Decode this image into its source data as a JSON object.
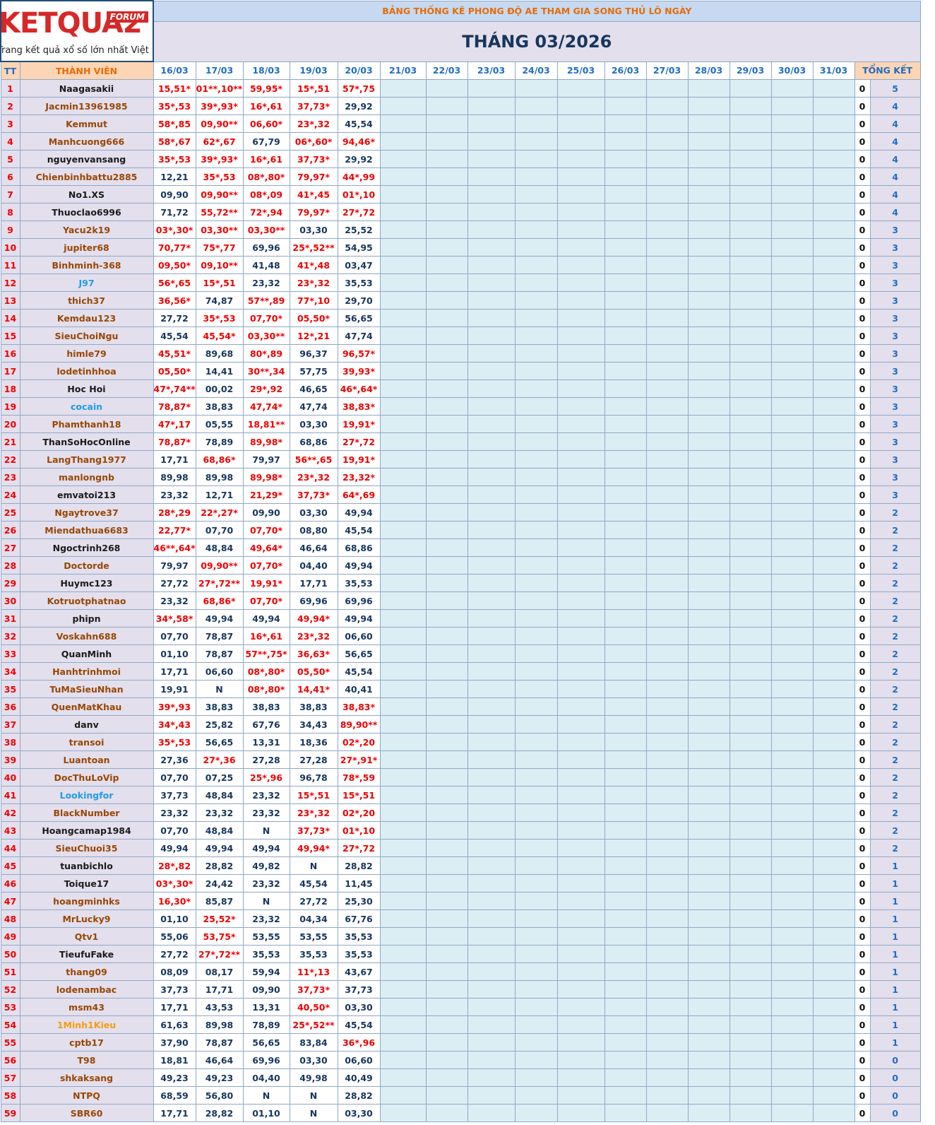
{
  "logo": {
    "name": "KETQUA2",
    "badge": "FORUM",
    "tagline": "Trang kết quả xổ số lớn nhất Việt Nam"
  },
  "header": {
    "title": "BẢNG THỐNG KÊ PHONG ĐỘ AE THAM GIA SONG THỦ LÔ NGÀY",
    "month": "THÁNG 03/2026"
  },
  "table": {
    "columns": [
      "TT",
      "THÀNH VIÊN",
      "16/03",
      "17/03",
      "18/03",
      "19/03",
      "20/03",
      "21/03",
      "22/03",
      "23/03",
      "24/03",
      "25/03",
      "26/03",
      "27/03",
      "28/03",
      "29/03",
      "30/03",
      "31/03",
      "TỔNG KẾT"
    ],
    "rows": [
      [
        1,
        "Naagasakii",
        "15,51*",
        "01**,10**",
        "59,95*",
        "15*,51",
        "57*,75",
        0,
        5
      ],
      [
        2,
        "Jacmin13961985",
        "35*,53",
        "39*,93*",
        "16*,61",
        "37,73*",
        "29,92",
        0,
        4
      ],
      [
        3,
        "Kemmut",
        "58*,85",
        "09,90**",
        "06,60*",
        "23*,32",
        "45,54",
        0,
        4
      ],
      [
        4,
        "Manhcuong666",
        "58*,67",
        "62*,67",
        "67,79",
        "06*,60*",
        "94,46*",
        0,
        4
      ],
      [
        5,
        "nguyenvansang",
        "35*,53",
        "39*,93*",
        "16*,61",
        "37,73*",
        "29,92",
        0,
        4
      ],
      [
        6,
        "Chienbinhbattu2885",
        "12,21",
        "35*,53",
        "08*,80*",
        "79,97*",
        "44*,99",
        0,
        4
      ],
      [
        7,
        "No1.XS",
        "09,90",
        "09,90**",
        "08*,09",
        "41*,45",
        "01*,10",
        0,
        4
      ],
      [
        8,
        "Thuoclao6996",
        "71,72",
        "55,72**",
        "72*,94",
        "79,97*",
        "27*,72",
        0,
        4
      ],
      [
        9,
        "Yacu2k19",
        "03*,30*",
        "03,30**",
        "03,30**",
        "03,30",
        "25,52",
        0,
        3
      ],
      [
        10,
        "jupiter68",
        "70,77*",
        "75*,77",
        "69,96",
        "25*,52**",
        "54,95",
        0,
        3
      ],
      [
        11,
        "Binhminh-368",
        "09,50*",
        "09,10**",
        "41,48",
        "41*,48",
        "03,47",
        0,
        3
      ],
      [
        12,
        "J97",
        "56*,65",
        "15*,51",
        "23,32",
        "23*,32",
        "35,53",
        0,
        3
      ],
      [
        13,
        "thich37",
        "36,56*",
        "74,87",
        "57**,89",
        "77*,10",
        "29,70",
        0,
        3
      ],
      [
        14,
        "Kemdau123",
        "27,72",
        "35*,53",
        "07,70*",
        "05,50*",
        "56,65",
        0,
        3
      ],
      [
        15,
        "SieuChoiNgu",
        "45,54",
        "45,54*",
        "03,30**",
        "12*,21",
        "47,74",
        0,
        3
      ],
      [
        16,
        "himle79",
        "45,51*",
        "89,68",
        "80*,89",
        "96,37",
        "96,57*",
        0,
        3
      ],
      [
        17,
        "lodetinhhoa",
        "05,50*",
        "14,41",
        "30**,34",
        "57,75",
        "39,93*",
        0,
        3
      ],
      [
        18,
        "Hoc Hoi",
        "47*,74**",
        "00,02",
        "29*,92",
        "46,65",
        "46*,64*",
        0,
        3
      ],
      [
        19,
        "cocain",
        "78,87*",
        "38,83",
        "47,74*",
        "47,74",
        "38,83*",
        0,
        3
      ],
      [
        20,
        "Phamthanh18",
        "47*,17",
        "05,55",
        "18,81**",
        "03,30",
        "19,91*",
        0,
        3
      ],
      [
        21,
        "ThanSoHocOnline",
        "78,87*",
        "78,89",
        "89,98*",
        "68,86",
        "27*,72",
        0,
        3
      ],
      [
        22,
        "LangThang1977",
        "17,71",
        "68,86*",
        "79,97",
        "56**,65",
        "19,91*",
        0,
        3
      ],
      [
        23,
        "manlongnb",
        "89,98",
        "89,98",
        "89,98*",
        "23*,32",
        "23,32*",
        0,
        3
      ],
      [
        24,
        "emvatoi213",
        "23,32",
        "12,71",
        "21,29*",
        "37,73*",
        "64*,69",
        0,
        3
      ],
      [
        25,
        "Ngaytrove37",
        "28*,29",
        "22*,27*",
        "09,90",
        "03,30",
        "49,94",
        0,
        2
      ],
      [
        26,
        "Miendathua6683",
        "22,77*",
        "07,70",
        "07,70*",
        "08,80",
        "45,54",
        0,
        2
      ],
      [
        27,
        "Ngoctrinh268",
        "46**,64*",
        "48,84",
        "49,64*",
        "46,64",
        "68,86",
        0,
        2
      ],
      [
        28,
        "Doctorde",
        "79,97",
        "09,90**",
        "07,70*",
        "04,40",
        "49,94",
        0,
        2
      ],
      [
        29,
        "Huymc123",
        "27,72",
        "27*,72**",
        "19,91*",
        "17,71",
        "35,53",
        0,
        2
      ],
      [
        30,
        "Kotruotphatnao",
        "23,32",
        "68,86*",
        "07,70*",
        "69,96",
        "69,96",
        0,
        2
      ],
      [
        31,
        "phipn",
        "34*,58*",
        "49,94",
        "49,94",
        "49,94*",
        "49,94",
        0,
        2
      ],
      [
        32,
        "Voskahn688",
        "07,70",
        "78,87",
        "16*,61",
        "23*,32",
        "06,60",
        0,
        2
      ],
      [
        33,
        "QuanMinh",
        "01,10",
        "78,87",
        "57**,75*",
        "36,63*",
        "56,65",
        0,
        2
      ],
      [
        34,
        "Hanhtrinhmoi",
        "17,71",
        "06,60",
        "08*,80*",
        "05,50*",
        "45,54",
        0,
        2
      ],
      [
        35,
        "TuMaSieuNhan",
        "19,91",
        "N",
        "08*,80*",
        "14,41*",
        "40,41",
        0,
        2
      ],
      [
        36,
        "QuenMatKhau",
        "39*,93",
        "38,83",
        "38,83",
        "38,83",
        "38,83*",
        0,
        2
      ],
      [
        37,
        "danv",
        "34*,43",
        "25,82",
        "67,76",
        "34,43",
        "89,90**",
        0,
        2
      ],
      [
        38,
        "transoi",
        "35*,53",
        "56,65",
        "13,31",
        "18,36",
        "02*,20",
        0,
        2
      ],
      [
        39,
        "Luantoan",
        "27,36",
        "27*,36",
        "27,28",
        "27,28",
        "27*,91*",
        0,
        2
      ],
      [
        40,
        "DocThuLoVip",
        "07,70",
        "07,25",
        "25*,96",
        "96,78",
        "78*,59",
        0,
        2
      ],
      [
        41,
        "Lookingfor",
        "37,73",
        "48,84",
        "23,32",
        "15*,51",
        "15*,51",
        0,
        2
      ],
      [
        42,
        "BlackNumber",
        "23,32",
        "23,32",
        "23,32",
        "23*,32",
        "02*,20",
        0,
        2
      ],
      [
        43,
        "Hoangcamap1984",
        "07,70",
        "48,84",
        "N",
        "37,73*",
        "01*,10",
        0,
        2
      ],
      [
        44,
        "SieuChuoi35",
        "49,94",
        "49,94",
        "49,94",
        "49,94*",
        "27*,72",
        0,
        2
      ],
      [
        45,
        "tuanbichlo",
        "28*,82",
        "28,82",
        "49,82",
        "N",
        "28,82",
        0,
        1
      ],
      [
        46,
        "Toique17",
        "03*,30*",
        "24,42",
        "23,32",
        "45,54",
        "11,45",
        0,
        1
      ],
      [
        47,
        "hoangminhks",
        "16,30*",
        "85,87",
        "N",
        "27,72",
        "25,30",
        0,
        1
      ],
      [
        48,
        "MrLucky9",
        "01,10",
        "25,52*",
        "23,32",
        "04,34",
        "67,76",
        0,
        1
      ],
      [
        49,
        "Qtv1",
        "55,06",
        "53,75*",
        "53,55",
        "53,55",
        "35,53",
        0,
        1
      ],
      [
        50,
        "TieufuFake",
        "27,72",
        "27*,72**",
        "35,53",
        "35,53",
        "35,53",
        0,
        1
      ],
      [
        51,
        "thang09",
        "08,09",
        "08,17",
        "59,94",
        "11*,13",
        "43,67",
        0,
        1
      ],
      [
        52,
        "lodenambac",
        "37,73",
        "17,71",
        "09,90",
        "37,73*",
        "37,73",
        0,
        1
      ],
      [
        53,
        "msm43",
        "17,71",
        "43,53",
        "13,31",
        "40,50*",
        "03,30",
        0,
        1
      ],
      [
        54,
        "1Minh1Kieu",
        "61,63",
        "89,98",
        "78,89",
        "25*,52**",
        "45,54",
        0,
        1
      ],
      [
        55,
        "cptb17",
        "37,90",
        "78,87",
        "56,65",
        "83,84",
        "36*,96",
        0,
        1
      ],
      [
        56,
        "T98",
        "18,81",
        "46,64",
        "69,96",
        "03,30",
        "06,60",
        0,
        0
      ],
      [
        57,
        "shkaksang",
        "49,23",
        "49,23",
        "04,40",
        "49,98",
        "40,49",
        0,
        0
      ],
      [
        58,
        "NTPQ",
        "68,59",
        "56,80",
        "N",
        "N",
        "28,82",
        0,
        0
      ],
      [
        59,
        "SBR60",
        "17,71",
        "28,82",
        "01,10",
        "N",
        "03,30",
        0,
        0
      ]
    ],
    "name_colors": [
      "#1a1a1a",
      "#974706",
      "#974706",
      "#974706",
      "#1a1a1a",
      "#974706",
      "#1a1a1a",
      "#1a1a1a",
      "#974706",
      "#974706",
      "#974706",
      "#1e9be8",
      "#974706",
      "#974706",
      "#974706",
      "#974706",
      "#974706",
      "#1a1a1a",
      "#1e9be8",
      "#974706",
      "#1a1a1a",
      "#974706",
      "#974706",
      "#1a1a1a",
      "#974706",
      "#974706",
      "#1a1a1a",
      "#974706",
      "#1a1a1a",
      "#974706",
      "#1a1a1a",
      "#974706",
      "#1a1a1a",
      "#974706",
      "#974706",
      "#974706",
      "#1a1a1a",
      "#974706",
      "#974706",
      "#974706",
      "#1e9be8",
      "#974706",
      "#1a1a1a",
      "#974706",
      "#1a1a1a",
      "#1a1a1a",
      "#974706",
      "#974706",
      "#974706",
      "#1a1a1a",
      "#974706",
      "#974706",
      "#974706",
      "#f39c12",
      "#974706",
      "#974706",
      "#974706",
      "#974706",
      "#974706"
    ]
  }
}
